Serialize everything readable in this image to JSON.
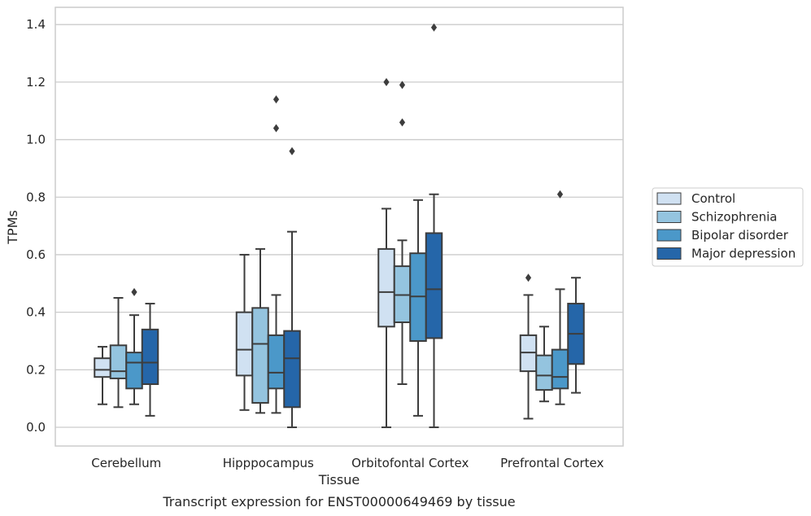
{
  "caption": "Transcript expression for ENST00000649469 by tissue",
  "chart_data": {
    "type": "boxplot",
    "xlabel": "Tissue",
    "ylabel": "TPMs",
    "ylim": [
      -0.065,
      1.46
    ],
    "yticks": [
      "0.0",
      "0.2",
      "0.4",
      "0.6",
      "0.8",
      "1.0",
      "1.2",
      "1.4"
    ],
    "grid": "horizontal",
    "legend_position": "right",
    "categories": [
      "Cerebellum",
      "Hipppocampus",
      "Orbitofontal Cortex",
      "Prefrontal Cortex"
    ],
    "series": [
      {
        "name": "Control",
        "color": "#d0e1f2",
        "boxes": [
          {
            "whislo": 0.08,
            "q1": 0.175,
            "med": 0.2,
            "q3": 0.24,
            "whishi": 0.28,
            "fliers": []
          },
          {
            "whislo": 0.06,
            "q1": 0.18,
            "med": 0.27,
            "q3": 0.4,
            "whishi": 0.6,
            "fliers": []
          },
          {
            "whislo": 0.0,
            "q1": 0.35,
            "med": 0.47,
            "q3": 0.62,
            "whishi": 0.76,
            "fliers": [
              1.2
            ]
          },
          {
            "whislo": 0.03,
            "q1": 0.195,
            "med": 0.26,
            "q3": 0.32,
            "whishi": 0.46,
            "fliers": [
              0.52
            ]
          }
        ]
      },
      {
        "name": "Schizophrenia",
        "color": "#94c4df",
        "boxes": [
          {
            "whislo": 0.07,
            "q1": 0.17,
            "med": 0.195,
            "q3": 0.285,
            "whishi": 0.45,
            "fliers": []
          },
          {
            "whislo": 0.05,
            "q1": 0.085,
            "med": 0.29,
            "q3": 0.415,
            "whishi": 0.62,
            "fliers": []
          },
          {
            "whislo": 0.15,
            "q1": 0.365,
            "med": 0.46,
            "q3": 0.56,
            "whishi": 0.65,
            "fliers": [
              1.06,
              1.19
            ]
          },
          {
            "whislo": 0.09,
            "q1": 0.13,
            "med": 0.18,
            "q3": 0.25,
            "whishi": 0.35,
            "fliers": []
          }
        ]
      },
      {
        "name": "Bipolar disorder",
        "color": "#4b98c9",
        "boxes": [
          {
            "whislo": 0.08,
            "q1": 0.135,
            "med": 0.225,
            "q3": 0.26,
            "whishi": 0.39,
            "fliers": [
              0.47
            ]
          },
          {
            "whislo": 0.05,
            "q1": 0.135,
            "med": 0.19,
            "q3": 0.32,
            "whishi": 0.46,
            "fliers": [
              1.04,
              1.14
            ]
          },
          {
            "whislo": 0.04,
            "q1": 0.3,
            "med": 0.455,
            "q3": 0.605,
            "whishi": 0.79,
            "fliers": []
          },
          {
            "whislo": 0.08,
            "q1": 0.135,
            "med": 0.175,
            "q3": 0.27,
            "whishi": 0.48,
            "fliers": [
              0.81
            ]
          }
        ]
      },
      {
        "name": "Major depression",
        "color": "#2566a9",
        "boxes": [
          {
            "whislo": 0.04,
            "q1": 0.15,
            "med": 0.225,
            "q3": 0.34,
            "whishi": 0.43,
            "fliers": []
          },
          {
            "whislo": 0.0,
            "q1": 0.07,
            "med": 0.24,
            "q3": 0.335,
            "whishi": 0.68,
            "fliers": [
              0.96
            ]
          },
          {
            "whislo": 0.0,
            "q1": 0.31,
            "med": 0.48,
            "q3": 0.675,
            "whishi": 0.81,
            "fliers": [
              1.39
            ]
          },
          {
            "whislo": 0.12,
            "q1": 0.22,
            "med": 0.325,
            "q3": 0.43,
            "whishi": 0.52,
            "fliers": []
          }
        ]
      }
    ]
  }
}
